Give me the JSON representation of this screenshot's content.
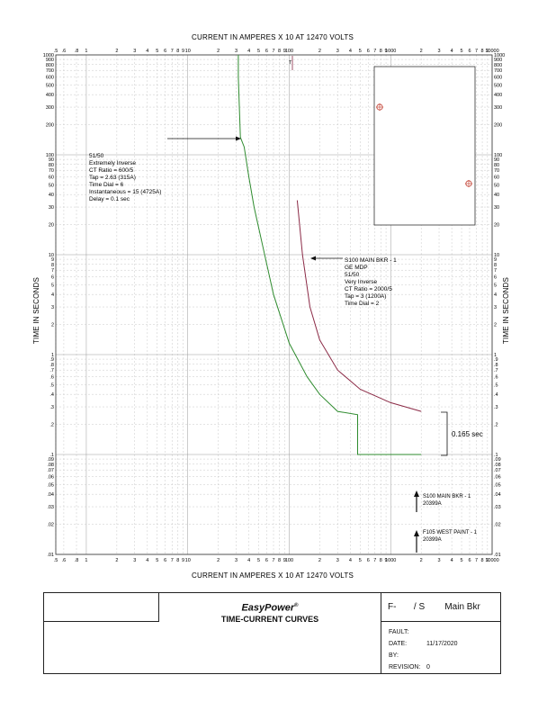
{
  "chart_data": {
    "type": "line",
    "title": "",
    "xlabel": "CURRENT IN AMPERES X 10 AT 12470 VOLTS",
    "ylabel": "TIME IN SECONDS",
    "x_scale": "log",
    "y_scale": "log",
    "xlim": [
      0.5,
      10000
    ],
    "ylim": [
      0.01,
      1000
    ],
    "grid": true,
    "x_tick_labels": [
      {
        "v": 0.5,
        "t": ".5"
      },
      {
        "v": 0.6,
        "t": ".6"
      },
      {
        "v": 0.8,
        "t": ".8"
      },
      {
        "v": 1,
        "t": "1"
      },
      {
        "v": 2,
        "t": "2"
      },
      {
        "v": 3,
        "t": "3"
      },
      {
        "v": 4,
        "t": "4"
      },
      {
        "v": 5,
        "t": "5"
      },
      {
        "v": 6,
        "t": "6"
      },
      {
        "v": 7,
        "t": "7"
      },
      {
        "v": 8,
        "t": "8"
      },
      {
        "v": 9,
        "t": "9"
      },
      {
        "v": 10,
        "t": "10"
      },
      {
        "v": 20,
        "t": "2"
      },
      {
        "v": 30,
        "t": "3"
      },
      {
        "v": 40,
        "t": "4"
      },
      {
        "v": 50,
        "t": "5"
      },
      {
        "v": 60,
        "t": "6"
      },
      {
        "v": 70,
        "t": "7"
      },
      {
        "v": 80,
        "t": "8"
      },
      {
        "v": 90,
        "t": "9"
      },
      {
        "v": 100,
        "t": "100"
      },
      {
        "v": 200,
        "t": "2"
      },
      {
        "v": 300,
        "t": "3"
      },
      {
        "v": 400,
        "t": "4"
      },
      {
        "v": 500,
        "t": "5"
      },
      {
        "v": 600,
        "t": "6"
      },
      {
        "v": 700,
        "t": "7"
      },
      {
        "v": 800,
        "t": "8"
      },
      {
        "v": 900,
        "t": "9"
      },
      {
        "v": 1000,
        "t": "1000"
      },
      {
        "v": 2000,
        "t": "2"
      },
      {
        "v": 3000,
        "t": "3"
      },
      {
        "v": 4000,
        "t": "4"
      },
      {
        "v": 5000,
        "t": "5"
      },
      {
        "v": 6000,
        "t": "6"
      },
      {
        "v": 7000,
        "t": "7"
      },
      {
        "v": 8000,
        "t": "8"
      },
      {
        "v": 9000,
        "t": "9"
      },
      {
        "v": 10000,
        "t": "10000"
      }
    ],
    "y_tick_labels": [
      {
        "v": 0.01,
        "t": ".01"
      },
      {
        "v": 0.02,
        "t": ".02"
      },
      {
        "v": 0.03,
        "t": ".03"
      },
      {
        "v": 0.04,
        "t": ".04"
      },
      {
        "v": 0.05,
        "t": ".05"
      },
      {
        "v": 0.06,
        "t": ".06"
      },
      {
        "v": 0.07,
        "t": ".07"
      },
      {
        "v": 0.08,
        "t": ".08"
      },
      {
        "v": 0.09,
        "t": ".09"
      },
      {
        "v": 0.1,
        "t": ".1"
      },
      {
        "v": 0.2,
        "t": ".2"
      },
      {
        "v": 0.3,
        "t": ".3"
      },
      {
        "v": 0.4,
        "t": ".4"
      },
      {
        "v": 0.5,
        "t": ".5"
      },
      {
        "v": 0.6,
        "t": ".6"
      },
      {
        "v": 0.7,
        "t": ".7"
      },
      {
        "v": 0.8,
        "t": ".8"
      },
      {
        "v": 0.9,
        "t": ".9"
      },
      {
        "v": 1,
        "t": "1"
      },
      {
        "v": 2,
        "t": "2"
      },
      {
        "v": 3,
        "t": "3"
      },
      {
        "v": 4,
        "t": "4"
      },
      {
        "v": 5,
        "t": "5"
      },
      {
        "v": 6,
        "t": "6"
      },
      {
        "v": 7,
        "t": "7"
      },
      {
        "v": 8,
        "t": "8"
      },
      {
        "v": 9,
        "t": "9"
      },
      {
        "v": 10,
        "t": "10"
      },
      {
        "v": 20,
        "t": "20"
      },
      {
        "v": 30,
        "t": "30"
      },
      {
        "v": 40,
        "t": "40"
      },
      {
        "v": 50,
        "t": "50"
      },
      {
        "v": 60,
        "t": "60"
      },
      {
        "v": 70,
        "t": "70"
      },
      {
        "v": 80,
        "t": "80"
      },
      {
        "v": 90,
        "t": "90"
      },
      {
        "v": 100,
        "t": "100"
      },
      {
        "v": 200,
        "t": "200"
      },
      {
        "v": 300,
        "t": "300"
      },
      {
        "v": 400,
        "t": "400"
      },
      {
        "v": 500,
        "t": "500"
      },
      {
        "v": 600,
        "t": "600"
      },
      {
        "v": 700,
        "t": "700"
      },
      {
        "v": 800,
        "t": "800"
      },
      {
        "v": 900,
        "t": "900"
      },
      {
        "v": 1000,
        "t": "1000"
      }
    ],
    "series": [
      {
        "key": "green",
        "color": "#2e8b2e",
        "points": [
          [
            31.5,
            1000
          ],
          [
            31.5,
            600
          ],
          [
            33,
            150
          ],
          [
            36,
            120
          ],
          [
            40,
            60
          ],
          [
            45,
            30
          ],
          [
            55,
            12
          ],
          [
            70,
            4
          ],
          [
            100,
            1.3
          ],
          [
            150,
            0.6
          ],
          [
            200,
            0.4
          ],
          [
            300,
            0.27
          ],
          [
            472,
            0.25
          ],
          [
            472,
            0.1
          ],
          [
            2000,
            0.1
          ]
        ]
      },
      {
        "key": "maroon",
        "color": "#8b2a46",
        "points": [
          [
            120,
            35
          ],
          [
            135,
            10
          ],
          [
            160,
            3
          ],
          [
            200,
            1.4
          ],
          [
            300,
            0.7
          ],
          [
            500,
            0.45
          ],
          [
            1000,
            0.33
          ],
          [
            2000,
            0.27
          ]
        ]
      }
    ],
    "annotations": {
      "green_relay": [
        "51/50",
        "Extremely Inverse",
        "CT Ratio = 600/5",
        "Tap = 2.63 (315A)",
        "Time Dial = 6",
        "Instantaneous = 15 (4725A)",
        "Delay = 0.1 sec"
      ],
      "maroon_relay": [
        "S100 MAIN BKR - 1",
        "GE MDP",
        "51/50",
        "Very Inverse",
        "CT Ratio = 2000/5",
        "Tap = 3 (1200A)",
        "Time Dial = 2"
      ],
      "margin_label": "0.165 sec",
      "fault_1": [
        "S100 MAIN BKR - 1",
        "20399A"
      ],
      "fault_2": [
        "F105 WEST PAINT - 1",
        "20399A"
      ],
      "top_marker": "T"
    }
  },
  "title_block": {
    "brand": "EasyPower",
    "brand_mark": "®",
    "doc_title": "TIME-CURRENT CURVES",
    "drawing": "F-       / S        Main Bkr",
    "fields": [
      {
        "label": "FAULT:",
        "value": ""
      },
      {
        "label": "DATE:",
        "value": "11/17/2020"
      },
      {
        "label": "BY:",
        "value": ""
      },
      {
        "label": "REVISION:",
        "value": "0"
      }
    ]
  }
}
